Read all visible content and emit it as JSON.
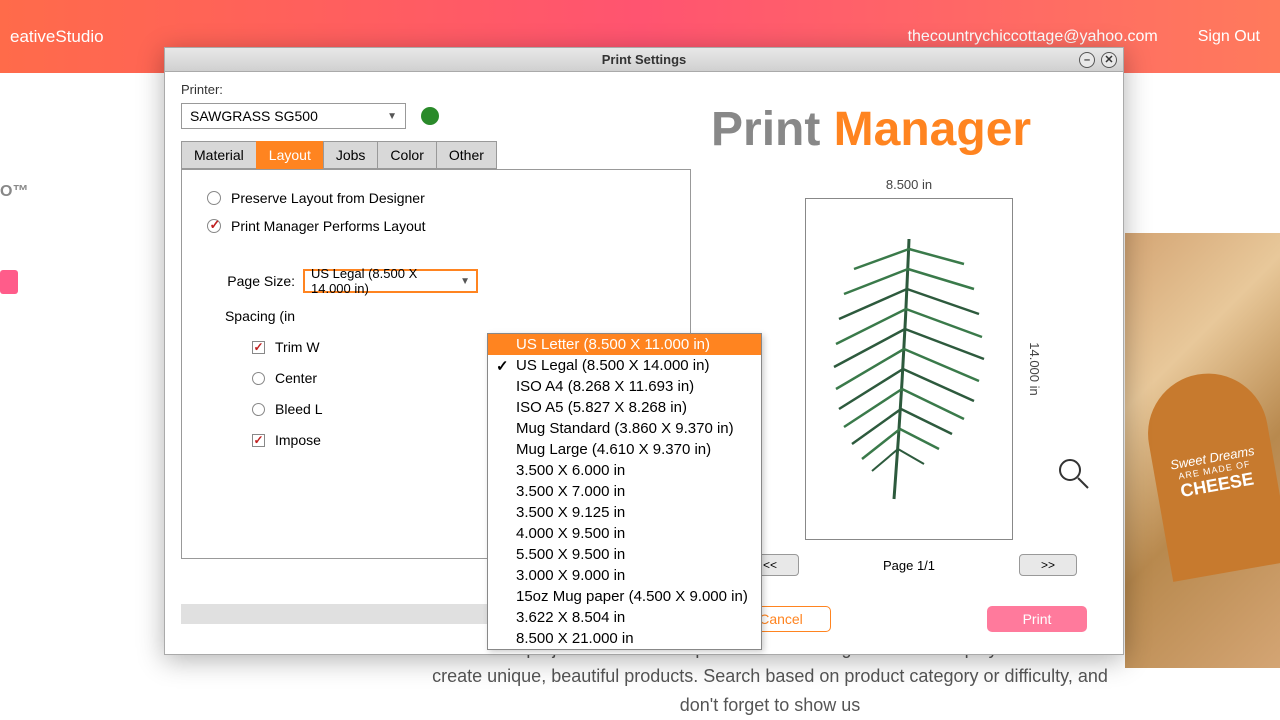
{
  "banner": {
    "app_name": "eativeStudio",
    "email": "thecountrychiccottage@yahoo.com",
    "sign_out": "Sign Out"
  },
  "logo_text": "O™",
  "bg_board": {
    "line1": "Sweet Dreams",
    "line2": "ARE MADE OF",
    "line3": "CHEESE"
  },
  "bg_paragraph": "Think of project cards like recipe cards: all the ingredients and tips you need to create unique, beautiful products. Search based on product category or difficulty, and don't forget to show us",
  "dialog": {
    "title": "Print Settings",
    "printer_label": "Printer:",
    "printer_value": "SAWGRASS SG500",
    "status_color": "#2a8a2a",
    "tabs": [
      "Material",
      "Layout",
      "Jobs",
      "Color",
      "Other"
    ],
    "active_tab": 1,
    "layout_options": {
      "preserve": "Preserve Layout from Designer",
      "pm_layout": "Print Manager Performs Layout",
      "page_size_label": "Page Size:",
      "page_size_value": "US Legal (8.500 X 14.000 in)",
      "spacing_label": "Spacing (in",
      "trim": "Trim W",
      "center": "Center",
      "bleed": "Bleed L",
      "impose": "Impose"
    },
    "page_sizes": [
      "US Letter (8.500 X 11.000 in)",
      "US Legal (8.500 X 14.000 in)",
      "ISO A4 (8.268 X 11.693 in)",
      "ISO A5 (5.827 X 8.268 in)",
      "Mug Standard (3.860 X 9.370 in)",
      "Mug Large (4.610 X 9.370 in)",
      "3.500 X 6.000 in",
      "3.500 X 7.000 in",
      "3.500 X 9.125 in",
      "4.000 X 9.500 in",
      "5.500 X 9.500 in",
      "3.000 X 9.000 in",
      "15oz Mug paper (4.500 X 9.000 in)",
      "3.622 X 8.504 in",
      "8.500 X 21.000 in"
    ],
    "highlighted_index": 0,
    "selected_index": 1
  },
  "preview": {
    "title_print": "Print ",
    "title_manager": "Manager",
    "width": "8.500 in",
    "height": "14.000 in",
    "prev": "<<",
    "next": ">>",
    "page": "Page 1/1",
    "cancel": "Cancel",
    "print": "Print"
  },
  "colors": {
    "accent": "#ff8420",
    "pink": "#ff7a9c",
    "leaf": "#3a7a4a"
  }
}
